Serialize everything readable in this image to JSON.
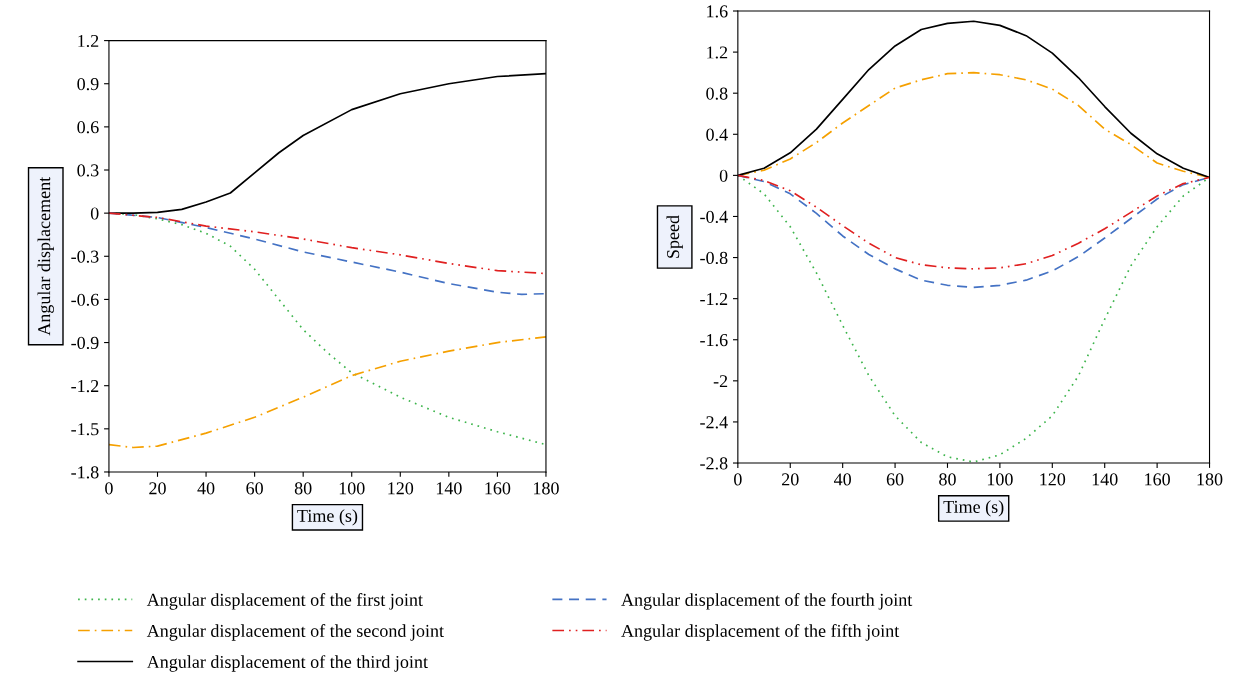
{
  "chart_data": [
    {
      "type": "line",
      "xlabel": "Time (s)",
      "ylabel": "Angular displacement",
      "xlim": [
        0,
        180
      ],
      "ylim": [
        -1.8,
        1.2
      ],
      "xticks": [
        0,
        20,
        40,
        60,
        80,
        100,
        120,
        140,
        160,
        180
      ],
      "yticks": [
        -1.8,
        -1.5,
        -1.2,
        -0.9,
        -0.6,
        -0.3,
        0,
        0.3,
        0.6,
        0.9,
        1.2
      ],
      "grid": false,
      "legend": "bottom",
      "series": [
        {
          "name": "Angular displacement of the first joint",
          "color": "#3cb44b",
          "line_style": "dotted",
          "x": [
            0,
            10,
            20,
            30,
            40,
            50,
            60,
            70,
            80,
            90,
            100,
            120,
            140,
            160,
            180
          ],
          "values": [
            0,
            -0.01,
            -0.04,
            -0.08,
            -0.14,
            -0.23,
            -0.39,
            -0.6,
            -0.81,
            -0.97,
            -1.11,
            -1.28,
            -1.42,
            -1.52,
            -1.61
          ]
        },
        {
          "name": "Angular displacement of the second joint",
          "color": "#f5a000",
          "line_style": "dashdot",
          "x": [
            0,
            10,
            20,
            40,
            60,
            80,
            100,
            120,
            140,
            160,
            180
          ],
          "values": [
            -1.61,
            -1.63,
            -1.62,
            -1.53,
            -1.42,
            -1.28,
            -1.13,
            -1.03,
            -0.96,
            -0.9,
            -0.86
          ]
        },
        {
          "name": "Angular displacement of the third joint",
          "color": "#000000",
          "line_style": "solid",
          "x": [
            0,
            10,
            20,
            30,
            40,
            50,
            60,
            70,
            80,
            100,
            120,
            140,
            160,
            180
          ],
          "values": [
            0,
            0,
            0.005,
            0.026,
            0.077,
            0.14,
            0.28,
            0.42,
            0.54,
            0.72,
            0.83,
            0.9,
            0.95,
            0.97
          ]
        },
        {
          "name": "Angular displacement of the fourth joint",
          "color": "#4472c4",
          "line_style": "dashed",
          "x": [
            0,
            20,
            40,
            60,
            80,
            100,
            120,
            140,
            160,
            170,
            180
          ],
          "values": [
            0,
            -0.03,
            -0.1,
            -0.18,
            -0.27,
            -0.34,
            -0.41,
            -0.49,
            -0.55,
            -0.565,
            -0.56
          ]
        },
        {
          "name": "Angular displacement of the fifth joint",
          "color": "#e02020",
          "line_style": "dashdotdot",
          "x": [
            0,
            20,
            40,
            60,
            80,
            100,
            120,
            140,
            160,
            180
          ],
          "values": [
            0,
            -0.03,
            -0.09,
            -0.13,
            -0.18,
            -0.24,
            -0.29,
            -0.35,
            -0.4,
            -0.42
          ]
        }
      ]
    },
    {
      "type": "line",
      "xlabel": "Time (s)",
      "ylabel": "Speed",
      "xlim": [
        0,
        180
      ],
      "ylim": [
        -2.8,
        1.6
      ],
      "xticks": [
        0,
        20,
        40,
        60,
        80,
        100,
        120,
        140,
        160,
        180
      ],
      "yticks": [
        -2.8,
        -2.4,
        -2,
        -1.6,
        -1.2,
        -0.8,
        -0.4,
        0,
        0.4,
        0.8,
        1.2,
        1.6
      ],
      "grid": false,
      "series": [
        {
          "color": "#3cb44b",
          "line_style": "dotted",
          "x": [
            0,
            10,
            20,
            30,
            40,
            50,
            60,
            70,
            80,
            90,
            100,
            110,
            120,
            130,
            140,
            150,
            160,
            170,
            180
          ],
          "values": [
            0,
            -0.18,
            -0.5,
            -0.95,
            -1.46,
            -1.95,
            -2.34,
            -2.6,
            -2.74,
            -2.79,
            -2.72,
            -2.56,
            -2.34,
            -1.95,
            -1.4,
            -0.88,
            -0.5,
            -0.2,
            -0.02
          ]
        },
        {
          "color": "#f5a000",
          "line_style": "dashdot",
          "x": [
            0,
            10,
            20,
            30,
            40,
            50,
            60,
            70,
            80,
            90,
            100,
            110,
            120,
            130,
            140,
            150,
            160,
            170,
            180
          ],
          "values": [
            0,
            0.05,
            0.16,
            0.32,
            0.51,
            0.68,
            0.85,
            0.93,
            0.99,
            1.0,
            0.98,
            0.93,
            0.84,
            0.68,
            0.45,
            0.3,
            0.12,
            0.04,
            -0.02
          ]
        },
        {
          "color": "#000000",
          "line_style": "solid",
          "x": [
            0,
            10,
            20,
            30,
            40,
            50,
            60,
            70,
            80,
            90,
            100,
            110,
            120,
            130,
            140,
            150,
            160,
            170,
            180
          ],
          "values": [
            0,
            0.07,
            0.22,
            0.45,
            0.74,
            1.03,
            1.26,
            1.42,
            1.48,
            1.5,
            1.46,
            1.36,
            1.19,
            0.95,
            0.67,
            0.41,
            0.21,
            0.07,
            -0.02
          ]
        },
        {
          "color": "#4472c4",
          "line_style": "dashed",
          "x": [
            0,
            10,
            20,
            30,
            40,
            50,
            60,
            70,
            80,
            90,
            100,
            110,
            120,
            130,
            140,
            150,
            160,
            170,
            180
          ],
          "values": [
            0,
            -0.06,
            -0.18,
            -0.37,
            -0.59,
            -0.77,
            -0.91,
            -1.02,
            -1.07,
            -1.09,
            -1.07,
            -1.02,
            -0.93,
            -0.79,
            -0.61,
            -0.42,
            -0.23,
            -0.09,
            -0.02
          ]
        },
        {
          "color": "#e02020",
          "line_style": "dashdotdot",
          "x": [
            0,
            10,
            20,
            30,
            40,
            50,
            60,
            70,
            80,
            90,
            100,
            110,
            120,
            130,
            140,
            150,
            160,
            170,
            180
          ],
          "values": [
            0,
            -0.05,
            -0.15,
            -0.31,
            -0.49,
            -0.66,
            -0.8,
            -0.87,
            -0.9,
            -0.91,
            -0.9,
            -0.86,
            -0.78,
            -0.66,
            -0.52,
            -0.36,
            -0.2,
            -0.08,
            -0.02
          ]
        }
      ]
    }
  ]
}
